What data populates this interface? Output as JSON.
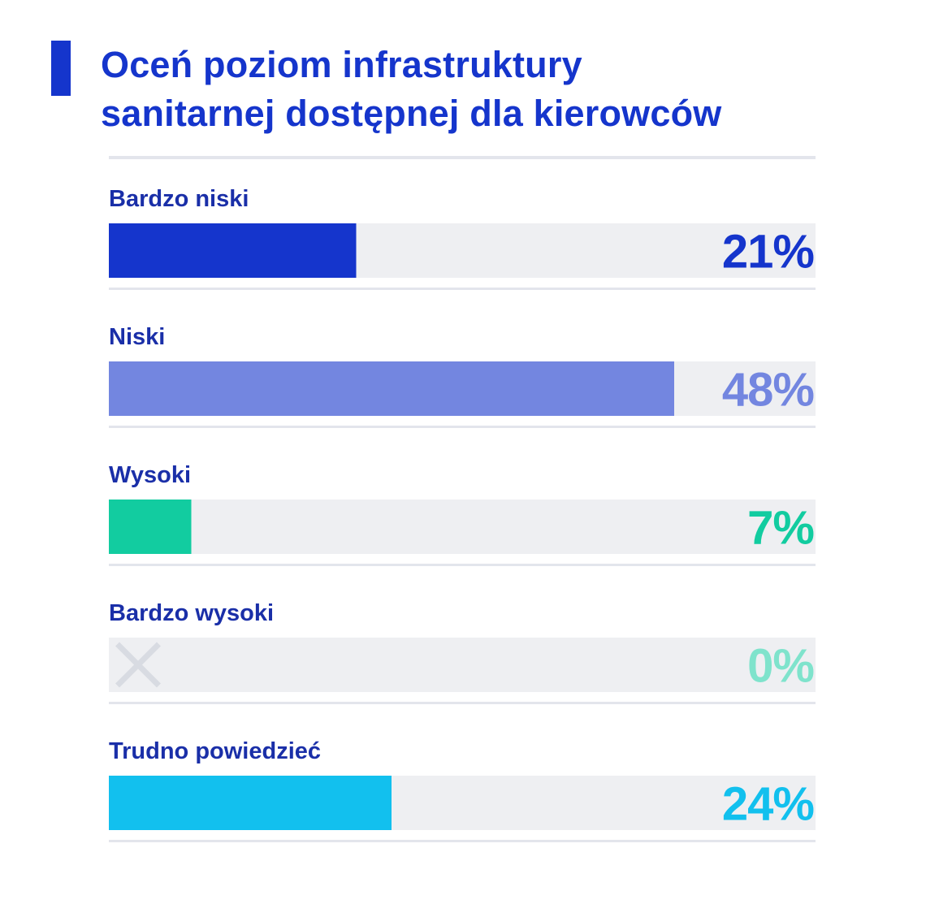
{
  "chart_data": {
    "type": "bar",
    "title_lines": [
      "Oceń poziom infrastruktury",
      "sanitarnej dostępnej dla kierowców"
    ],
    "categories": [
      "Bardzo niski",
      "Niski",
      "Wysoki",
      "Bardzo wysoki",
      "Trudno powiedzieć"
    ],
    "values": [
      21,
      48,
      7,
      0,
      24
    ],
    "value_labels": [
      "21%",
      "48%",
      "7%",
      "0%",
      "24%"
    ],
    "bar_colors": [
      "#1535cc",
      "#7386e0",
      "#12cca0",
      "#d8dbe2",
      "#12c0ee"
    ],
    "label_colors": [
      "#1535cc",
      "#7386e0",
      "#12cca0",
      "#7fe3cc",
      "#12c0ee"
    ],
    "zero_marker_icon": "cross-icon",
    "xlim": [
      0,
      60
    ],
    "track_color": "#eeeff2",
    "accent_color": "#1535cc",
    "grid": false,
    "legend": "none"
  }
}
